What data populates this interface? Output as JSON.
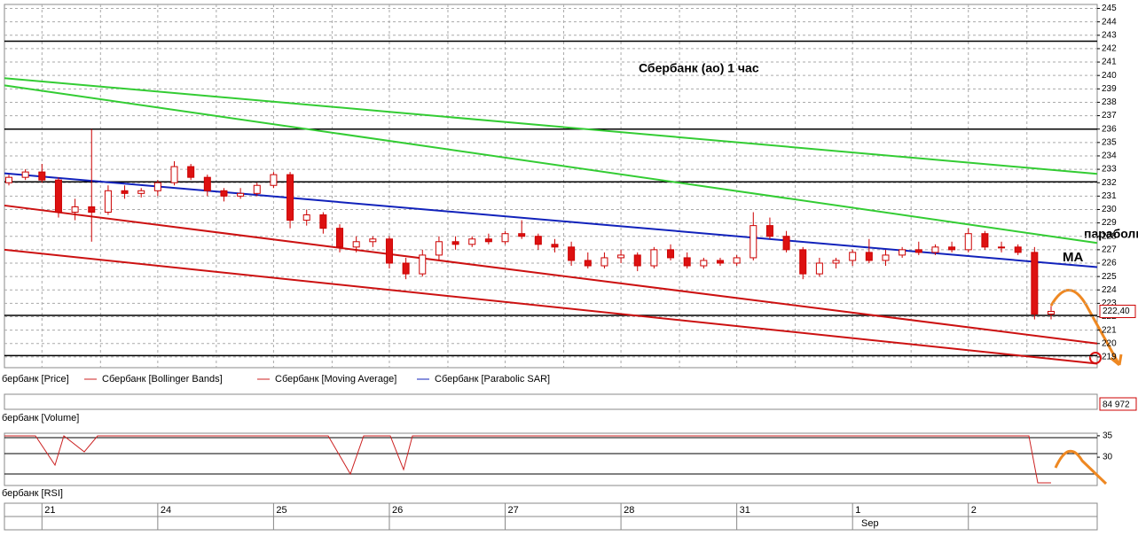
{
  "chart_data": {
    "type": "candlestick",
    "title": "Сбербанк (ао)  1 час",
    "annotations": [
      "параболик",
      "МА"
    ],
    "categories": [
      null,
      null,
      "21",
      null,
      null,
      null,
      null,
      null,
      null,
      "24",
      null,
      null,
      null,
      null,
      null,
      null,
      "25",
      null,
      null,
      null,
      null,
      null,
      null,
      "26",
      null,
      null,
      null,
      null,
      null,
      null,
      "27",
      null,
      null,
      null,
      null,
      null,
      null,
      "28",
      null,
      null,
      null,
      null,
      null,
      null,
      "31",
      null,
      null,
      null,
      null,
      null,
      null,
      "1",
      null,
      null,
      null,
      null,
      null,
      null,
      "2",
      null,
      null,
      null,
      null,
      null
    ],
    "month_label": "Sep",
    "ohlc": [
      [
        232.0,
        232.6,
        231.8,
        232.4
      ],
      [
        232.4,
        233.0,
        232.2,
        232.8
      ],
      [
        232.8,
        233.4,
        232.0,
        232.2
      ],
      [
        232.2,
        232.4,
        229.4,
        229.8
      ],
      [
        229.8,
        230.8,
        229.2,
        230.2
      ],
      [
        230.2,
        236.0,
        227.6,
        229.8
      ],
      [
        229.8,
        231.8,
        229.6,
        231.4
      ],
      [
        231.4,
        231.8,
        230.8,
        231.2
      ],
      [
        231.2,
        231.6,
        230.9,
        231.4
      ],
      [
        231.4,
        232.2,
        231.0,
        232.0
      ],
      [
        232.0,
        233.6,
        231.8,
        233.2
      ],
      [
        233.2,
        233.4,
        232.2,
        232.4
      ],
      [
        232.4,
        232.6,
        231.0,
        231.4
      ],
      [
        231.4,
        231.6,
        230.6,
        231.0
      ],
      [
        231.0,
        231.6,
        230.8,
        231.2
      ],
      [
        231.2,
        232.0,
        231.0,
        231.8
      ],
      [
        231.8,
        232.8,
        231.6,
        232.6
      ],
      [
        232.6,
        232.8,
        228.6,
        229.2
      ],
      [
        229.2,
        230.0,
        228.8,
        229.6
      ],
      [
        229.6,
        229.8,
        228.2,
        228.6
      ],
      [
        228.6,
        228.9,
        226.8,
        227.2
      ],
      [
        227.2,
        228.0,
        226.8,
        227.6
      ],
      [
        227.6,
        228.0,
        227.2,
        227.8
      ],
      [
        227.8,
        228.0,
        225.6,
        226.0
      ],
      [
        226.0,
        226.4,
        224.8,
        225.2
      ],
      [
        225.2,
        227.0,
        225.0,
        226.6
      ],
      [
        226.6,
        228.0,
        226.2,
        227.6
      ],
      [
        227.6,
        228.0,
        227.0,
        227.4
      ],
      [
        227.4,
        228.0,
        227.2,
        227.8
      ],
      [
        227.8,
        228.2,
        227.4,
        227.6
      ],
      [
        227.6,
        228.4,
        227.4,
        228.2
      ],
      [
        228.2,
        229.2,
        227.8,
        228.0
      ],
      [
        228.0,
        228.2,
        227.0,
        227.4
      ],
      [
        227.4,
        227.8,
        226.8,
        227.2
      ],
      [
        227.2,
        227.6,
        225.8,
        226.2
      ],
      [
        226.2,
        226.8,
        225.6,
        225.8
      ],
      [
        225.8,
        226.8,
        225.6,
        226.4
      ],
      [
        226.4,
        227.0,
        226.0,
        226.6
      ],
      [
        226.6,
        226.8,
        225.4,
        225.8
      ],
      [
        225.8,
        227.2,
        225.6,
        227.0
      ],
      [
        227.0,
        227.4,
        226.2,
        226.4
      ],
      [
        226.4,
        226.8,
        225.6,
        225.8
      ],
      [
        225.8,
        226.4,
        225.6,
        226.2
      ],
      [
        226.2,
        226.4,
        225.8,
        226.0
      ],
      [
        226.0,
        226.6,
        225.8,
        226.4
      ],
      [
        226.4,
        229.8,
        226.2,
        228.8
      ],
      [
        228.8,
        229.4,
        227.8,
        228.0
      ],
      [
        228.0,
        228.4,
        226.8,
        227.0
      ],
      [
        227.0,
        227.2,
        224.8,
        225.2
      ],
      [
        225.2,
        226.4,
        225.0,
        226.0
      ],
      [
        226.0,
        226.4,
        225.6,
        226.2
      ],
      [
        226.2,
        227.0,
        225.8,
        226.8
      ],
      [
        226.8,
        227.8,
        226.0,
        226.2
      ],
      [
        226.2,
        227.0,
        225.8,
        226.6
      ],
      [
        226.6,
        227.2,
        226.4,
        227.0
      ],
      [
        227.0,
        227.6,
        226.6,
        226.8
      ],
      [
        226.8,
        227.4,
        226.6,
        227.2
      ],
      [
        227.2,
        227.6,
        226.8,
        227.0
      ],
      [
        227.0,
        228.6,
        226.8,
        228.2
      ],
      [
        228.2,
        228.4,
        227.0,
        227.2
      ],
      [
        227.2,
        227.6,
        226.8,
        227.2
      ],
      [
        227.2,
        227.4,
        226.6,
        226.8
      ],
      [
        226.8,
        227.2,
        221.8,
        222.2
      ],
      [
        222.2,
        222.8,
        221.8,
        222.4
      ]
    ],
    "up_color": "#ffffff",
    "down_color": "#dd1111",
    "outline_color": "#cc0000",
    "ylim": [
      218.2,
      245.3
    ],
    "yticks": [
      219,
      220,
      221,
      222,
      223,
      224,
      225,
      226,
      227,
      228,
      229,
      230,
      231,
      232,
      233,
      234,
      235,
      236,
      237,
      238,
      239,
      240,
      241,
      242,
      243,
      244,
      245
    ],
    "grid": true,
    "levels": [
      242.56,
      236.0,
      232.06,
      222.1,
      219.1
    ],
    "trendlines": [
      {
        "color": "#33cc33",
        "values": [
          239.8,
          232.66
        ]
      },
      {
        "color": "#33cc33",
        "values": [
          239.26,
          227.5
        ]
      },
      {
        "color": "#1122bb",
        "values": [
          232.7,
          225.7
        ]
      },
      {
        "color": "#cc1111",
        "values": [
          230.3,
          220.0
        ]
      },
      {
        "color": "#cc1111",
        "values": [
          227.0,
          218.5
        ]
      }
    ],
    "last_price": 222.4,
    "last_price_label": "222,40",
    "legend": [
      {
        "name": "бербанк [Price]",
        "color": null
      },
      {
        "name": "Сбербанк [Bollinger Bands]",
        "color": "#cc2222"
      },
      {
        "name": "Сбербанк [Moving Average]",
        "color": "#cc2222"
      },
      {
        "name": "Сбербанк [Parabolic SAR]",
        "color": "#1122bb"
      }
    ],
    "volume_label": "бербанк [Volume]",
    "last_volume_label": "84 972",
    "rsi_label": "бербанк [RSI]",
    "rsi_ylim": [
      23.4,
      35.6
    ],
    "rsi_yticks": [
      35,
      30
    ]
  }
}
